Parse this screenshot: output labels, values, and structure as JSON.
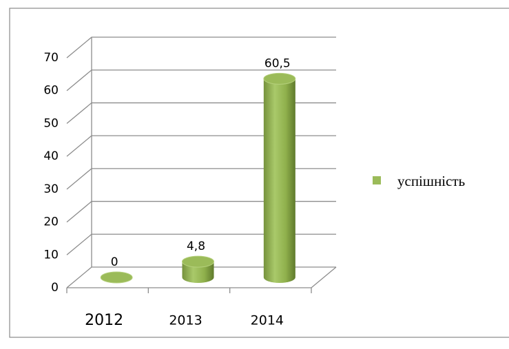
{
  "chart_data": {
    "type": "bar3d",
    "categories": [
      "2012",
      "2013",
      "2014"
    ],
    "series": [
      {
        "name": "успішність",
        "color": "#9bbb59",
        "values": [
          0,
          4.8,
          60.5
        ],
        "value_labels": [
          "0",
          "4,8",
          "60,5"
        ]
      }
    ],
    "ylim": [
      0,
      70
    ],
    "yticks": [
      0,
      10,
      20,
      30,
      40,
      50,
      60,
      70
    ],
    "grid": true,
    "legend": "right"
  }
}
